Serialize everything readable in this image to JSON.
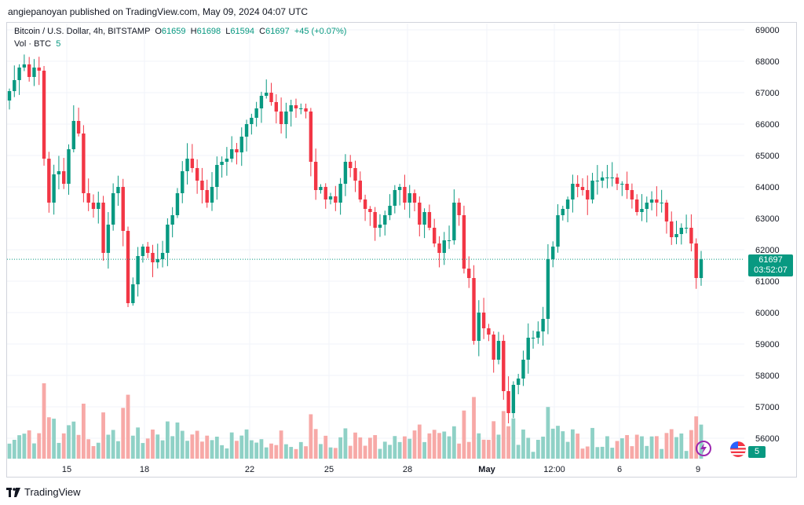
{
  "header": {
    "published": "angiepanoyan published on TradingView.com, May 09, 2024 04:07 UTC"
  },
  "legend": {
    "title": "Bitcoin / U.S. Dollar, 4h, BITSTAMP",
    "o_label": "O",
    "o": "61659",
    "h_label": "H",
    "h": "61698",
    "l_label": "L",
    "l": "61594",
    "c_label": "C",
    "c": "61697",
    "change": "+45 (+0.07%)",
    "vol_label": "Vol · BTC",
    "vol_value": "5"
  },
  "badges": {
    "last_price": "61697",
    "countdown": "03:52:07",
    "last_volume": "5"
  },
  "footer": {
    "brand": "TradingView"
  },
  "icons": {
    "flash": "lightning-icon",
    "flag": "us-flag-icon"
  },
  "colors": {
    "up": "#089981",
    "down": "#f23645",
    "vol_up": "#8fd1c6",
    "vol_down": "#f7a9a7"
  },
  "chart_data": {
    "type": "candlestick",
    "ylim": [
      55500,
      69300
    ],
    "y_ticks": [
      69000,
      68000,
      67000,
      66000,
      65000,
      64000,
      63000,
      62000,
      61000,
      60000,
      59000,
      58000,
      57000,
      56000
    ],
    "x_ticks": [
      "15",
      "18",
      "22",
      "25",
      "28",
      "May",
      "12:00",
      "6",
      "9"
    ],
    "current_price": 61697,
    "closes": [
      67050,
      67400,
      67800,
      67900,
      67500,
      67800,
      67700,
      64900,
      63500,
      64400,
      64500,
      64100,
      65200,
      66100,
      65700,
      63800,
      63500,
      63300,
      63500,
      61900,
      62800,
      63800,
      64000,
      62600,
      60300,
      60900,
      61800,
      62100,
      61900,
      61600,
      61700,
      61900,
      62800,
      63100,
      63800,
      64500,
      64900,
      64600,
      64200,
      63900,
      63500,
      64000,
      64700,
      64800,
      64900,
      65200,
      65100,
      65600,
      66000,
      66200,
      66500,
      66900,
      67000,
      66700,
      66400,
      66000,
      66400,
      66600,
      66500,
      66500,
      66400,
      64800,
      63900,
      64000,
      63600,
      63700,
      63500,
      64100,
      64800,
      64600,
      64200,
      63600,
      63300,
      63200,
      62700,
      62800,
      63100,
      63400,
      63900,
      64000,
      63500,
      63800,
      63500,
      62800,
      63200,
      62700,
      62200,
      61900,
      62300,
      62300,
      63500,
      63100,
      61400,
      61100,
      59100,
      60000,
      59500,
      59300,
      58500,
      59100,
      57500,
      56800,
      57700,
      57900,
      58500,
      59200,
      59200,
      59400,
      59800,
      61700,
      62100,
      63100,
      63300,
      63600,
      64100,
      64000,
      63900,
      63600,
      64200,
      64200,
      64300,
      64300,
      64300,
      64100,
      64100,
      63900,
      63600,
      63200,
      63300,
      63500,
      63600,
      63500,
      63500,
      62900,
      62400,
      62500,
      62700,
      62700,
      62200,
      61100,
      61697
    ],
    "volume_max": 1
  }
}
